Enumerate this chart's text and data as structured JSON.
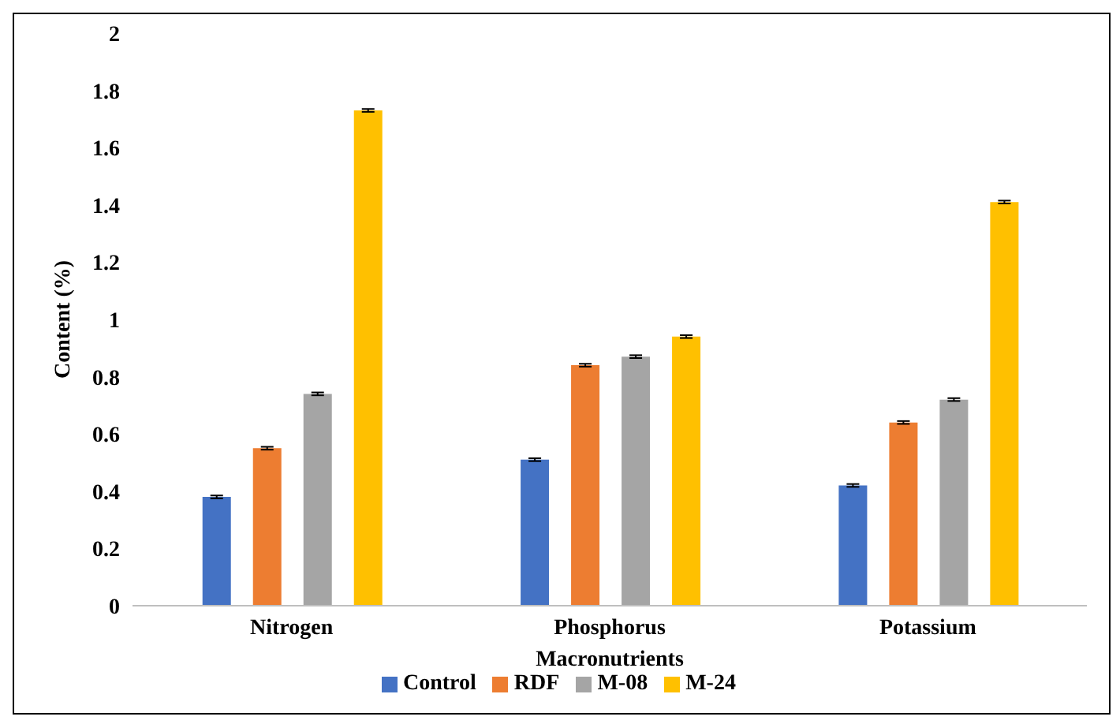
{
  "chart_data": {
    "type": "bar",
    "xlabel": "Macronutrients",
    "ylabel": "Content (%)",
    "categories": [
      "Nitrogen",
      "Phosphorus",
      "Potassium"
    ],
    "series": [
      {
        "name": "Control",
        "color": "#4472c4",
        "values": [
          0.38,
          0.51,
          0.42
        ],
        "errors": [
          0.005,
          0.005,
          0.005
        ]
      },
      {
        "name": "RDF",
        "color": "#ed7d31",
        "values": [
          0.55,
          0.84,
          0.64
        ],
        "errors": [
          0.005,
          0.005,
          0.005
        ]
      },
      {
        "name": "M-08",
        "color": "#a5a5a5",
        "values": [
          0.74,
          0.87,
          0.72
        ],
        "errors": [
          0.005,
          0.005,
          0.005
        ]
      },
      {
        "name": "M-24",
        "color": "#ffc000",
        "values": [
          1.73,
          0.94,
          1.41
        ],
        "errors": [
          0.005,
          0.005,
          0.005
        ]
      }
    ],
    "ylim": [
      0,
      2
    ],
    "yticks": [
      0,
      0.2,
      0.4,
      0.6,
      0.8,
      1,
      1.2,
      1.4,
      1.6,
      1.8,
      2
    ],
    "grid": false,
    "legend": "bottom"
  }
}
